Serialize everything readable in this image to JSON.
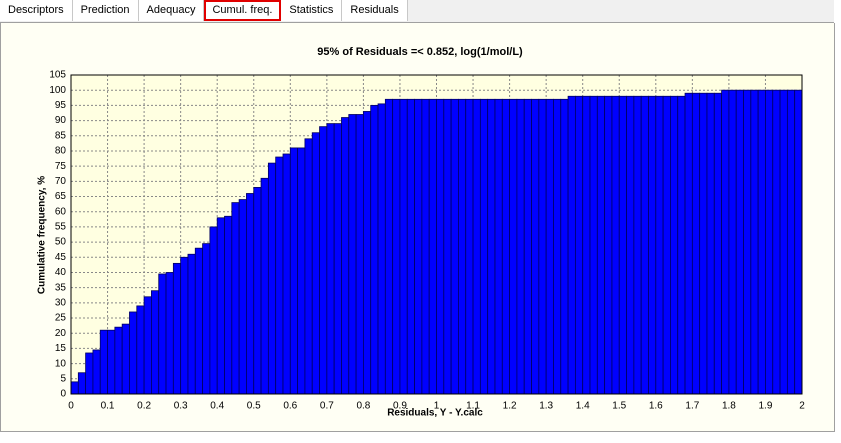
{
  "tabs": [
    "Descriptors",
    "Prediction",
    "Adequacy",
    "Cumul. freq.",
    "Statistics",
    "Residuals"
  ],
  "selected_tab": "Cumul. freq.",
  "chart_data": {
    "type": "histogram",
    "title": "95% of Residuals =< 0.852, log(1/mol/L)",
    "xlabel": "Residuals, Y - Y.calc",
    "ylabel": "Cumulative frequency, %",
    "bins": [
      0,
      0.02,
      0.04,
      0.06,
      0.08,
      0.1,
      0.12,
      0.14,
      0.16,
      0.18,
      0.2,
      0.22,
      0.24,
      0.26,
      0.28,
      0.3,
      0.32,
      0.34,
      0.36,
      0.38,
      0.4,
      0.42,
      0.44,
      0.46,
      0.48,
      0.5,
      0.52,
      0.54,
      0.56,
      0.58,
      0.6,
      0.62,
      0.64,
      0.66,
      0.68,
      0.7,
      0.72,
      0.74,
      0.76,
      0.78,
      0.8,
      0.82,
      0.84,
      0.86,
      0.88,
      0.9,
      0.92,
      0.94,
      0.96,
      0.98,
      1,
      1.02,
      1.04,
      1.06,
      1.08,
      1.1,
      1.12,
      1.14,
      1.16,
      1.18,
      1.2,
      1.22,
      1.24,
      1.26,
      1.28,
      1.3,
      1.32,
      1.34,
      1.36,
      1.38,
      1.4,
      1.42,
      1.44,
      1.46,
      1.48,
      1.5,
      1.52,
      1.54,
      1.56,
      1.58,
      1.6,
      1.62,
      1.64,
      1.66,
      1.68,
      1.7,
      1.72,
      1.74,
      1.76,
      1.78,
      1.8,
      1.82,
      1.84,
      1.86,
      1.88,
      1.9,
      1.92,
      1.94,
      1.96,
      1.98,
      2
    ],
    "values": [
      4,
      7,
      13.5,
      14.5,
      21,
      21,
      22,
      23,
      27,
      29,
      32,
      34,
      39.5,
      40,
      43,
      45,
      46,
      48,
      49.5,
      55,
      58,
      58.5,
      63,
      64,
      66,
      68,
      71,
      76,
      78,
      79,
      81,
      81,
      84,
      86,
      88,
      89,
      89,
      91,
      92,
      92,
      93,
      95,
      95.5,
      97,
      97,
      97,
      97,
      97,
      97,
      97,
      97,
      97,
      97,
      97,
      97,
      97,
      97,
      97,
      97,
      97,
      97,
      97,
      97,
      97,
      97,
      97,
      97,
      97,
      98,
      98,
      98,
      98,
      98,
      98,
      98,
      98,
      98,
      98,
      98,
      98,
      98,
      98,
      98,
      98,
      99,
      99,
      99,
      99,
      99,
      100,
      100,
      100,
      100,
      100,
      100,
      100,
      100,
      100,
      100,
      100
    ],
    "color": "#0000ff",
    "xlim": [
      0,
      2
    ],
    "xticks": [
      0,
      0.1,
      0.2,
      0.3,
      0.4,
      0.5,
      0.6,
      0.7,
      0.8,
      0.9,
      1,
      1.1,
      1.2,
      1.3,
      1.4,
      1.5,
      1.6,
      1.7,
      1.8,
      1.9,
      2
    ],
    "ylim": [
      0,
      105
    ],
    "yticks": [
      0,
      5,
      10,
      15,
      20,
      25,
      30,
      35,
      40,
      45,
      50,
      55,
      60,
      65,
      70,
      75,
      80,
      85,
      90,
      95,
      100,
      105
    ],
    "grid": true
  }
}
